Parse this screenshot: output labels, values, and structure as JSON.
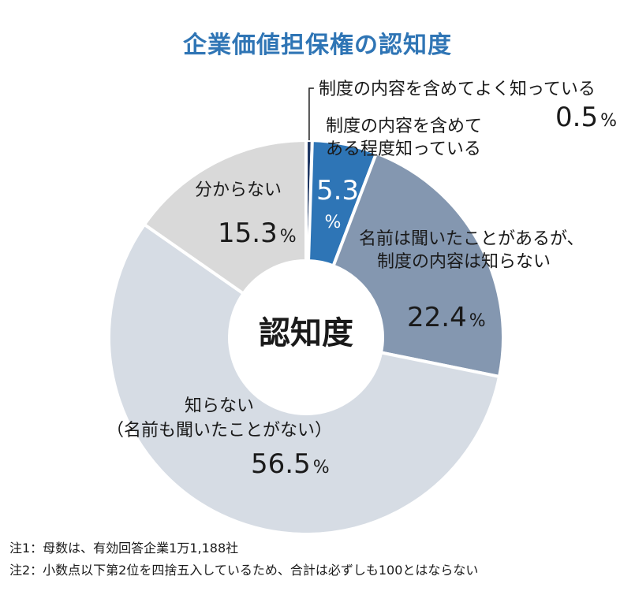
{
  "chart_data": {
    "type": "pie",
    "variant": "donut",
    "title": "企業価値担保権の認知度",
    "center_label": "認知度",
    "unit": "%",
    "slices": [
      {
        "label_lines": [
          "制度の内容を含めてよく知っている"
        ],
        "value": 0.5,
        "value_text": "0.5",
        "color": "#1f3864"
      },
      {
        "label_lines": [
          "制度の内容を含めて",
          "ある程度知っている"
        ],
        "value": 5.3,
        "value_text": "5.3",
        "color": "#2e75b6"
      },
      {
        "label_lines": [
          "名前は聞いたことがあるが、",
          "制度の内容は知らない"
        ],
        "value": 22.4,
        "value_text": "22.4",
        "color": "#8497b0"
      },
      {
        "label_lines": [
          "知らない",
          "（名前も聞いたことがない）"
        ],
        "value": 56.5,
        "value_text": "56.5",
        "color": "#d6dce4"
      },
      {
        "label_lines": [
          "分からない"
        ],
        "value": 15.3,
        "value_text": "15.3",
        "color": "#d9d9d9"
      }
    ]
  },
  "notes": [
    "注1：母数は、有効回答企業1万1,188社",
    "注2：小数点以下第2位を四捨五入しているため、合計は必ずしも100とはならない"
  ]
}
